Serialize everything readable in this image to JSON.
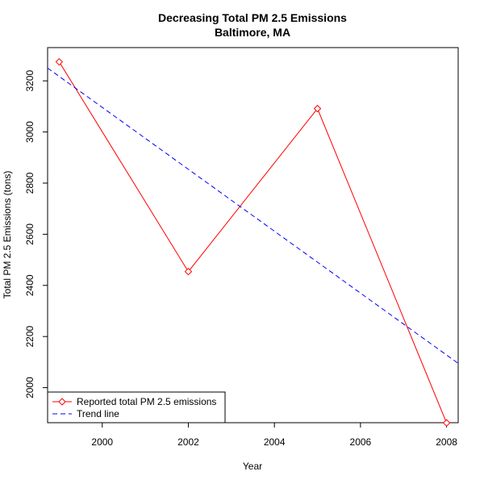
{
  "chart_data": {
    "type": "line",
    "title": "Decreasing Total PM 2.5 Emissions",
    "subtitle": "Baltimore, MA",
    "xlabel": "Year",
    "ylabel": "Total PM 2.5 Emissions (tons)",
    "xlim": [
      1998.73,
      2008.27
    ],
    "ylim": [
      1863,
      3330
    ],
    "xticks": [
      2000,
      2002,
      2004,
      2006,
      2008
    ],
    "yticks": [
      2000,
      2200,
      2400,
      2600,
      2800,
      3000,
      3200
    ],
    "grid": false,
    "legend_position": "bottom-left",
    "series": [
      {
        "name": "Reported total PM 2.5 emissions",
        "style": "solid",
        "marker": "diamond",
        "color": "#ff0000",
        "x": [
          1999,
          2002,
          2005,
          2008
        ],
        "y": [
          3274.2,
          2453.9,
          3091.4,
          1862.3
        ]
      },
      {
        "name": "Trend line",
        "style": "dashed",
        "color": "#0000ff",
        "x": [
          1998.73,
          2008.27
        ],
        "y": [
          3250,
          2095
        ]
      }
    ]
  }
}
